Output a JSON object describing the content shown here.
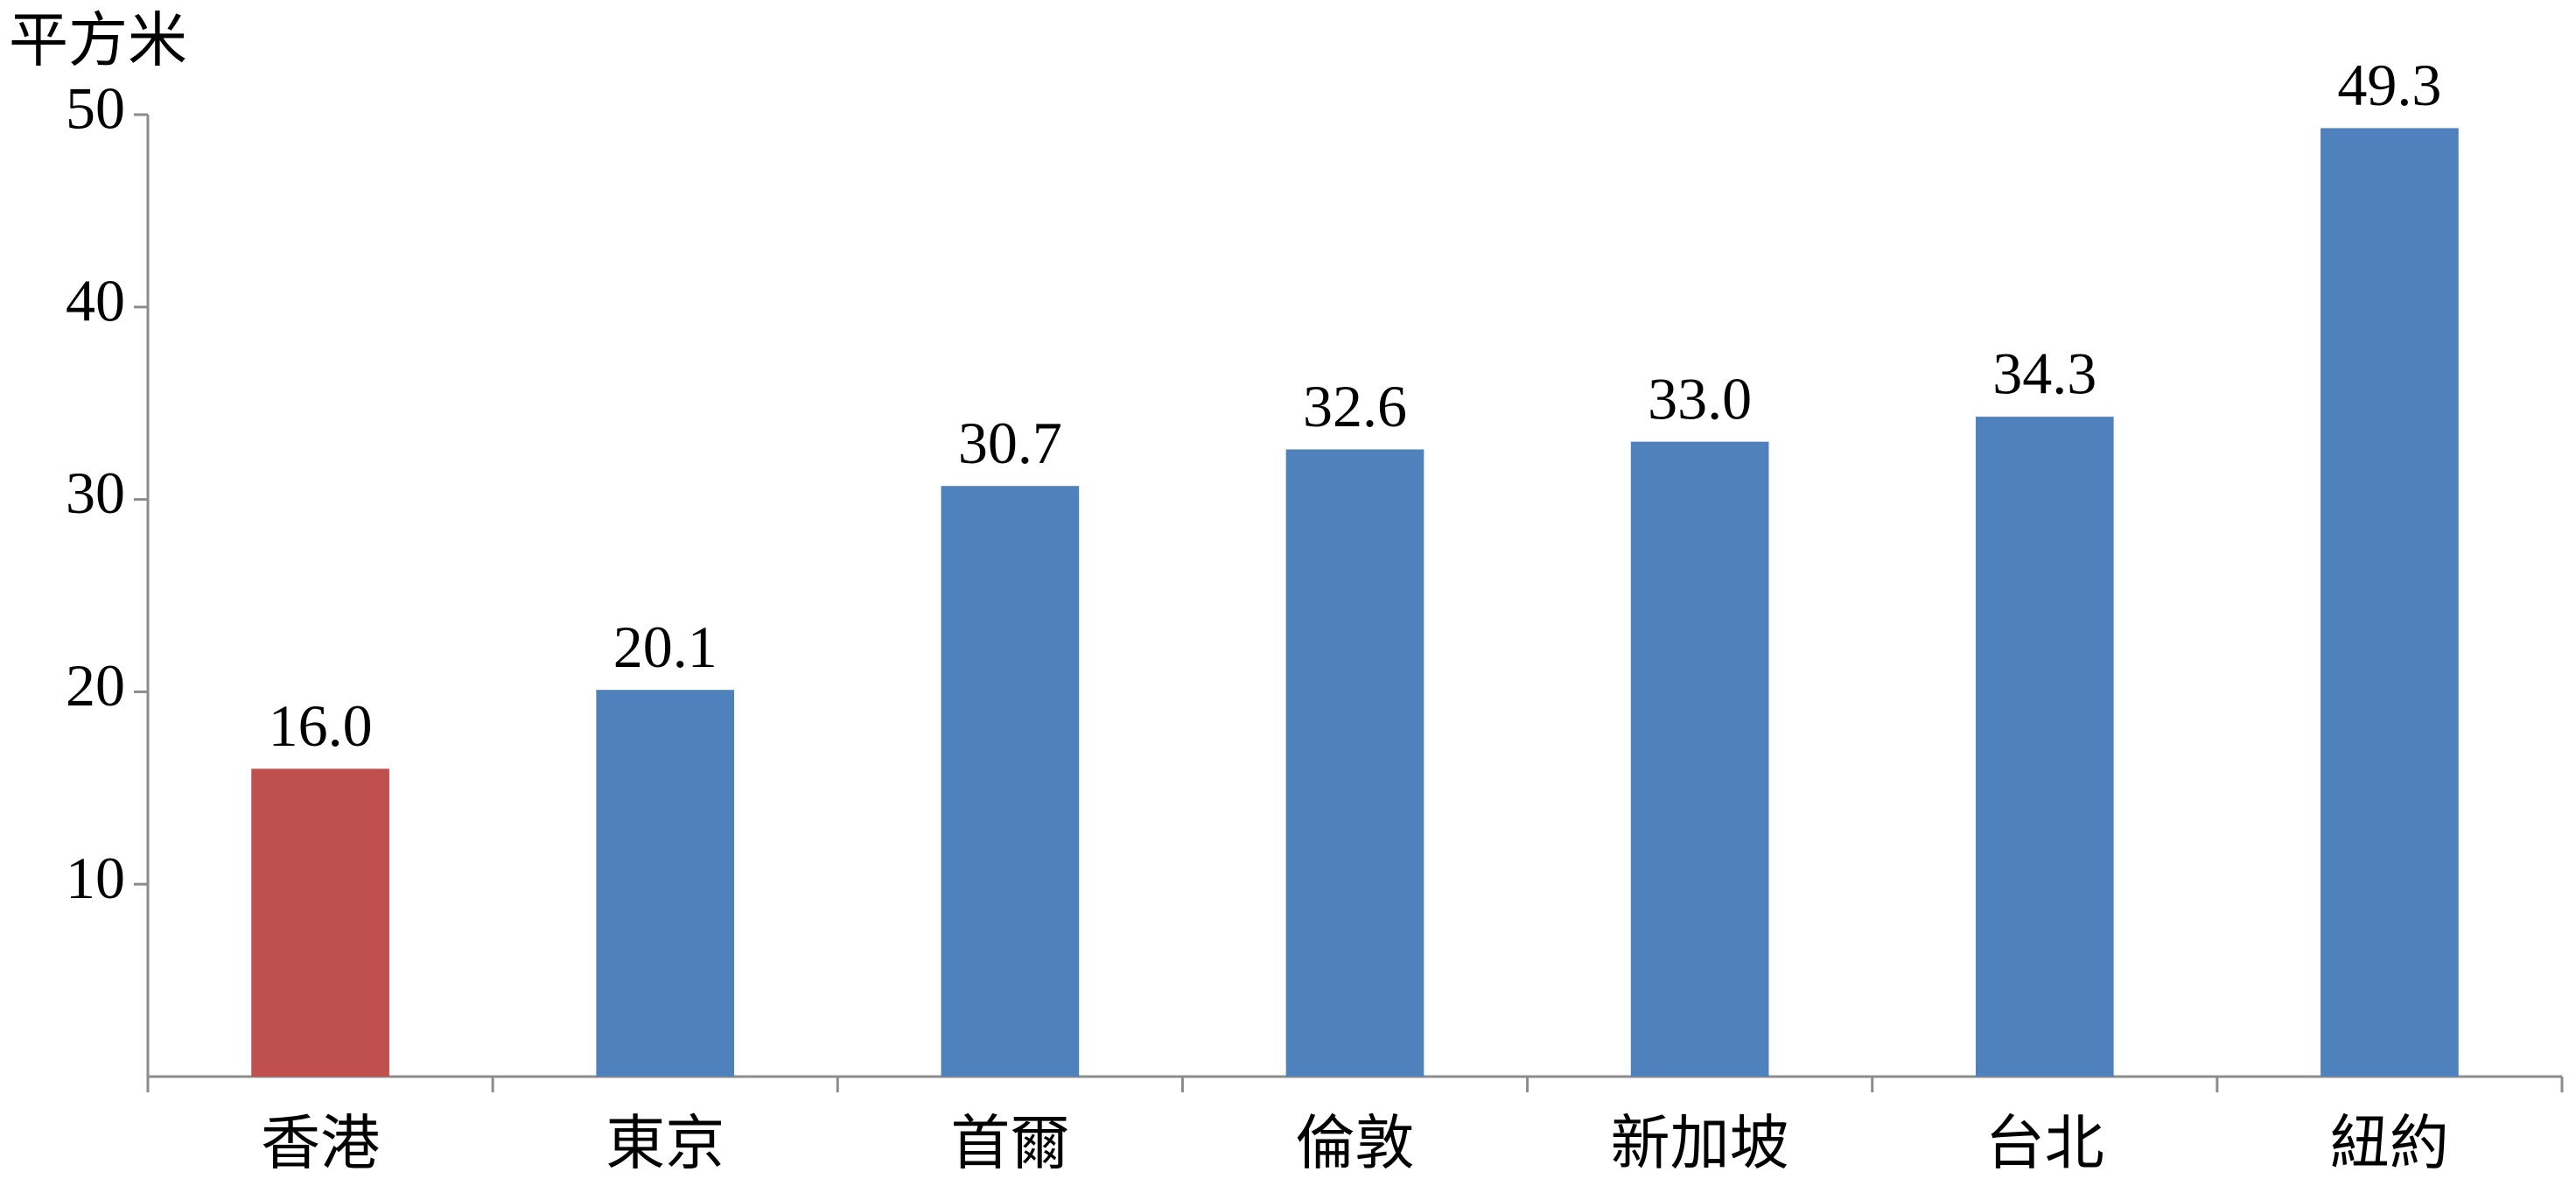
{
  "chart_data": {
    "type": "bar",
    "y_axis_label": "平方米",
    "categories": [
      "香港",
      "東京",
      "首爾",
      "倫敦",
      "新加坡",
      "台北",
      "紐約"
    ],
    "values": [
      16.0,
      20.1,
      30.7,
      32.6,
      33.0,
      34.3,
      49.3
    ],
    "value_labels": [
      "16.0",
      "20.1",
      "30.7",
      "32.6",
      "33.0",
      "34.3",
      "49.3"
    ],
    "colors": [
      "#c0504d",
      "#4f81bd",
      "#4f81bd",
      "#4f81bd",
      "#4f81bd",
      "#4f81bd",
      "#4f81bd"
    ],
    "ylim": [
      0,
      50
    ],
    "yticks": [
      10,
      20,
      30,
      40,
      50
    ],
    "grid": false
  }
}
